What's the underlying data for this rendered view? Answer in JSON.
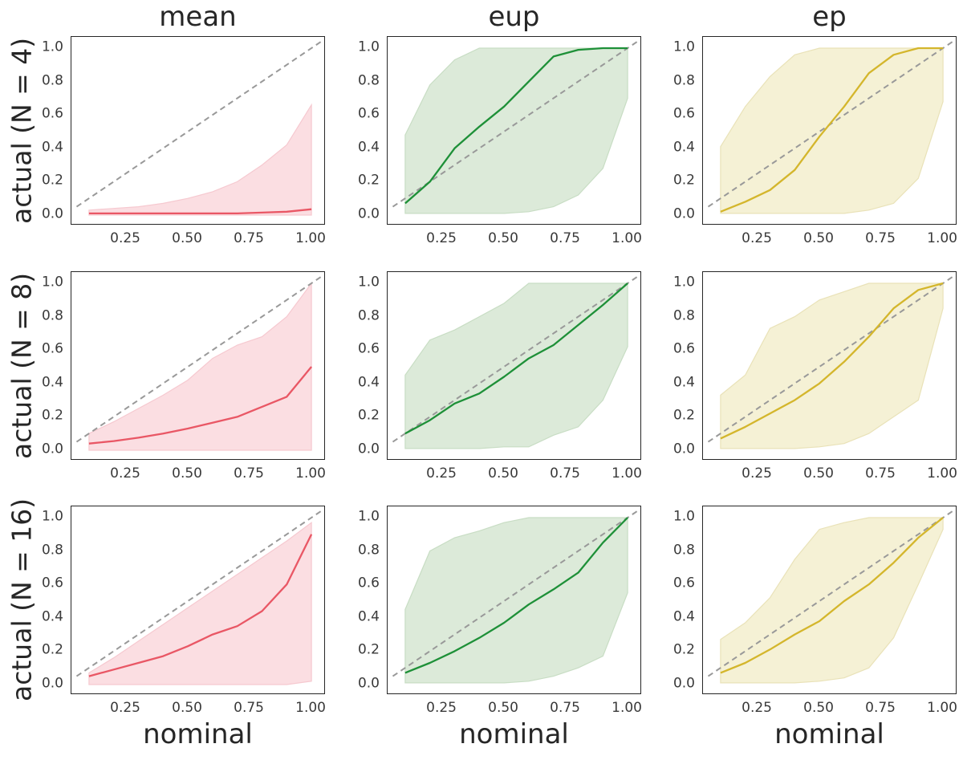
{
  "figure": {
    "xlabel": "nominal",
    "col_titles": [
      "mean",
      "eup",
      "ep"
    ],
    "row_labels": [
      "actual (N = 4)",
      "actual (N = 8)",
      "actual (N = 16)"
    ],
    "x_tick_labels": [
      "0.25",
      "0.50",
      "0.75",
      "1.00"
    ],
    "x_tick_values": [
      0.25,
      0.5,
      0.75,
      1.0
    ],
    "y_tick_labels": [
      "1.0",
      "0.8",
      "0.6",
      "0.4",
      "0.2",
      "0.0"
    ],
    "y_tick_values": [
      1.0,
      0.8,
      0.6,
      0.4,
      0.2,
      0.0
    ],
    "colors": {
      "mean_line": "#e95765",
      "mean_band": "#fbdee2",
      "mean_band_edge": "#f6c9d0",
      "eup_line": "#1e9038",
      "eup_band": "#dcead9",
      "eup_band_edge": "#c8ddc4",
      "ep_line": "#d4b62c",
      "ep_band": "#f5f1d5",
      "ep_band_edge": "#e9e2b8",
      "diagonal": "#999999",
      "spine": "#262626",
      "tick_text": "#3a3a3a",
      "label_text": "#262626",
      "background": "#ffffff"
    }
  },
  "chart_data": [
    {
      "type": "line",
      "col": 0,
      "row": 0,
      "title": "mean",
      "row_label": "actual (N = 4)",
      "x": [
        0.1,
        0.2,
        0.3,
        0.4,
        0.5,
        0.6,
        0.7,
        0.8,
        0.9,
        1.0
      ],
      "series": [
        {
          "name": "calibration-median",
          "values": [
            0.01,
            0.01,
            0.01,
            0.01,
            0.01,
            0.01,
            0.01,
            0.015,
            0.02,
            0.035
          ]
        },
        {
          "name": "band-upper",
          "values": [
            0.03,
            0.04,
            0.05,
            0.07,
            0.1,
            0.14,
            0.2,
            0.3,
            0.42,
            0.66
          ]
        },
        {
          "name": "band-lower",
          "values": [
            0.0,
            0.0,
            0.0,
            0.0,
            0.0,
            0.0,
            0.0,
            0.0,
            0.0,
            0.0
          ]
        }
      ],
      "diagonal": {
        "from": [
          0.05,
          0.05
        ],
        "to": [
          1.05,
          1.05
        ],
        "style": "dashed",
        "meaning": "y = x reference"
      },
      "xlim": [
        0.029,
        1.055
      ],
      "ylim": [
        -0.0625,
        1.067
      ],
      "line_color": "#e95765",
      "band_color": "#fbdee2",
      "band_edge": "#f6c9d0"
    },
    {
      "type": "line",
      "col": 1,
      "row": 0,
      "title": "eup",
      "row_label": "actual (N = 4)",
      "x": [
        0.1,
        0.2,
        0.3,
        0.4,
        0.5,
        0.6,
        0.7,
        0.8,
        0.9,
        1.0
      ],
      "series": [
        {
          "name": "calibration-median",
          "values": [
            0.07,
            0.2,
            0.4,
            0.53,
            0.65,
            0.8,
            0.95,
            0.99,
            1.0,
            1.0
          ]
        },
        {
          "name": "band-upper",
          "values": [
            0.48,
            0.78,
            0.93,
            1.0,
            1.0,
            1.0,
            1.0,
            1.0,
            1.0,
            1.0
          ]
        },
        {
          "name": "band-lower",
          "values": [
            0.01,
            0.01,
            0.01,
            0.01,
            0.01,
            0.02,
            0.05,
            0.12,
            0.28,
            0.7
          ]
        }
      ],
      "diagonal": {
        "from": [
          0.05,
          0.05
        ],
        "to": [
          1.05,
          1.05
        ],
        "style": "dashed",
        "meaning": "y = x reference"
      },
      "xlim": [
        0.029,
        1.055
      ],
      "ylim": [
        -0.0625,
        1.067
      ],
      "line_color": "#1e9038",
      "band_color": "#dcead9",
      "band_edge": "#c8ddc4"
    },
    {
      "type": "line",
      "col": 2,
      "row": 0,
      "title": "ep",
      "row_label": "actual (N = 4)",
      "x": [
        0.1,
        0.2,
        0.3,
        0.4,
        0.5,
        0.6,
        0.7,
        0.8,
        0.9,
        1.0
      ],
      "series": [
        {
          "name": "calibration-median",
          "values": [
            0.02,
            0.08,
            0.15,
            0.27,
            0.47,
            0.65,
            0.85,
            0.96,
            1.0,
            1.0
          ]
        },
        {
          "name": "band-upper",
          "values": [
            0.41,
            0.65,
            0.83,
            0.96,
            1.0,
            1.0,
            1.0,
            1.0,
            1.0,
            1.0
          ]
        },
        {
          "name": "band-lower",
          "values": [
            0.01,
            0.01,
            0.01,
            0.01,
            0.01,
            0.01,
            0.03,
            0.07,
            0.22,
            0.68
          ]
        }
      ],
      "diagonal": {
        "from": [
          0.05,
          0.05
        ],
        "to": [
          1.05,
          1.05
        ],
        "style": "dashed",
        "meaning": "y = x reference"
      },
      "xlim": [
        0.029,
        1.055
      ],
      "ylim": [
        -0.0625,
        1.067
      ],
      "line_color": "#d4b62c",
      "band_color": "#f5f1d5",
      "band_edge": "#e9e2b8"
    },
    {
      "type": "line",
      "col": 0,
      "row": 1,
      "title": "mean",
      "row_label": "actual (N = 8)",
      "x": [
        0.1,
        0.2,
        0.3,
        0.4,
        0.5,
        0.6,
        0.7,
        0.8,
        0.9,
        1.0
      ],
      "series": [
        {
          "name": "calibration-median",
          "values": [
            0.04,
            0.055,
            0.075,
            0.1,
            0.13,
            0.165,
            0.2,
            0.26,
            0.32,
            0.5
          ]
        },
        {
          "name": "band-upper",
          "values": [
            0.1,
            0.17,
            0.25,
            0.33,
            0.42,
            0.55,
            0.63,
            0.68,
            0.8,
            1.0
          ]
        },
        {
          "name": "band-lower",
          "values": [
            0.0,
            0.0,
            0.0,
            0.0,
            0.0,
            0.0,
            0.0,
            0.0,
            0.0,
            0.0
          ]
        }
      ],
      "diagonal": {
        "from": [
          0.05,
          0.05
        ],
        "to": [
          1.05,
          1.05
        ],
        "style": "dashed",
        "meaning": "y = x reference"
      },
      "xlim": [
        0.029,
        1.055
      ],
      "ylim": [
        -0.0625,
        1.067
      ],
      "line_color": "#e95765",
      "band_color": "#fbdee2",
      "band_edge": "#f6c9d0"
    },
    {
      "type": "line",
      "col": 1,
      "row": 1,
      "title": "eup",
      "row_label": "actual (N = 8)",
      "x": [
        0.1,
        0.2,
        0.3,
        0.4,
        0.5,
        0.6,
        0.7,
        0.8,
        0.9,
        1.0
      ],
      "series": [
        {
          "name": "calibration-median",
          "values": [
            0.1,
            0.18,
            0.28,
            0.34,
            0.44,
            0.55,
            0.63,
            0.75,
            0.87,
            1.0
          ]
        },
        {
          "name": "band-upper",
          "values": [
            0.45,
            0.66,
            0.72,
            0.8,
            0.88,
            1.0,
            1.0,
            1.0,
            1.0,
            1.0
          ]
        },
        {
          "name": "band-lower",
          "values": [
            0.01,
            0.01,
            0.01,
            0.01,
            0.02,
            0.02,
            0.09,
            0.14,
            0.3,
            0.62
          ]
        }
      ],
      "diagonal": {
        "from": [
          0.05,
          0.05
        ],
        "to": [
          1.05,
          1.05
        ],
        "style": "dashed",
        "meaning": "y = x reference"
      },
      "xlim": [
        0.029,
        1.055
      ],
      "ylim": [
        -0.0625,
        1.067
      ],
      "line_color": "#1e9038",
      "band_color": "#dcead9",
      "band_edge": "#c8ddc4"
    },
    {
      "type": "line",
      "col": 2,
      "row": 1,
      "title": "ep",
      "row_label": "actual (N = 8)",
      "x": [
        0.1,
        0.2,
        0.3,
        0.4,
        0.5,
        0.6,
        0.7,
        0.8,
        0.9,
        1.0
      ],
      "series": [
        {
          "name": "calibration-median",
          "values": [
            0.07,
            0.14,
            0.22,
            0.3,
            0.4,
            0.53,
            0.68,
            0.85,
            0.96,
            1.0
          ]
        },
        {
          "name": "band-upper",
          "values": [
            0.33,
            0.45,
            0.73,
            0.8,
            0.9,
            0.95,
            1.0,
            1.0,
            1.0,
            1.0
          ]
        },
        {
          "name": "band-lower",
          "values": [
            0.01,
            0.01,
            0.01,
            0.01,
            0.02,
            0.04,
            0.1,
            0.2,
            0.3,
            0.85
          ]
        }
      ],
      "diagonal": {
        "from": [
          0.05,
          0.05
        ],
        "to": [
          1.05,
          1.05
        ],
        "style": "dashed",
        "meaning": "y = x reference"
      },
      "xlim": [
        0.029,
        1.055
      ],
      "ylim": [
        -0.0625,
        1.067
      ],
      "line_color": "#d4b62c",
      "band_color": "#f5f1d5",
      "band_edge": "#e9e2b8"
    },
    {
      "type": "line",
      "col": 0,
      "row": 2,
      "title": "mean",
      "row_label": "actual (N = 16)",
      "x": [
        0.1,
        0.2,
        0.3,
        0.4,
        0.5,
        0.6,
        0.7,
        0.8,
        0.9,
        1.0
      ],
      "series": [
        {
          "name": "calibration-median",
          "values": [
            0.05,
            0.09,
            0.13,
            0.17,
            0.23,
            0.3,
            0.35,
            0.44,
            0.6,
            0.9
          ]
        },
        {
          "name": "band-upper",
          "values": [
            0.07,
            0.16,
            0.26,
            0.36,
            0.46,
            0.56,
            0.66,
            0.76,
            0.86,
            0.97
          ]
        },
        {
          "name": "band-lower",
          "values": [
            0.0,
            0.0,
            0.0,
            0.0,
            0.0,
            0.0,
            0.0,
            0.0,
            0.0,
            0.02
          ]
        }
      ],
      "diagonal": {
        "from": [
          0.05,
          0.05
        ],
        "to": [
          1.05,
          1.05
        ],
        "style": "dashed",
        "meaning": "y = x reference"
      },
      "xlim": [
        0.029,
        1.055
      ],
      "ylim": [
        -0.0625,
        1.067
      ],
      "line_color": "#e95765",
      "band_color": "#fbdee2",
      "band_edge": "#f6c9d0"
    },
    {
      "type": "line",
      "col": 1,
      "row": 2,
      "title": "eup",
      "row_label": "actual (N = 16)",
      "x": [
        0.1,
        0.2,
        0.3,
        0.4,
        0.5,
        0.6,
        0.7,
        0.8,
        0.9,
        1.0
      ],
      "series": [
        {
          "name": "calibration-median",
          "values": [
            0.07,
            0.13,
            0.2,
            0.28,
            0.37,
            0.48,
            0.57,
            0.67,
            0.85,
            1.0
          ]
        },
        {
          "name": "band-upper",
          "values": [
            0.45,
            0.8,
            0.88,
            0.92,
            0.97,
            1.0,
            1.0,
            1.0,
            1.0,
            1.0
          ]
        },
        {
          "name": "band-lower",
          "values": [
            0.01,
            0.01,
            0.01,
            0.01,
            0.01,
            0.02,
            0.05,
            0.1,
            0.17,
            0.55
          ]
        }
      ],
      "diagonal": {
        "from": [
          0.05,
          0.05
        ],
        "to": [
          1.05,
          1.05
        ],
        "style": "dashed",
        "meaning": "y = x reference"
      },
      "xlim": [
        0.029,
        1.055
      ],
      "ylim": [
        -0.0625,
        1.067
      ],
      "line_color": "#1e9038",
      "band_color": "#dcead9",
      "band_edge": "#c8ddc4"
    },
    {
      "type": "line",
      "col": 2,
      "row": 2,
      "title": "ep",
      "row_label": "actual (N = 16)",
      "x": [
        0.1,
        0.2,
        0.3,
        0.4,
        0.5,
        0.6,
        0.7,
        0.8,
        0.9,
        1.0
      ],
      "series": [
        {
          "name": "calibration-median",
          "values": [
            0.07,
            0.13,
            0.21,
            0.3,
            0.38,
            0.5,
            0.6,
            0.73,
            0.88,
            1.0
          ]
        },
        {
          "name": "band-upper",
          "values": [
            0.27,
            0.37,
            0.52,
            0.75,
            0.93,
            0.97,
            1.0,
            1.0,
            1.0,
            1.0
          ]
        },
        {
          "name": "band-lower",
          "values": [
            0.01,
            0.01,
            0.01,
            0.01,
            0.02,
            0.04,
            0.1,
            0.28,
            0.6,
            0.93
          ]
        }
      ],
      "diagonal": {
        "from": [
          0.05,
          0.05
        ],
        "to": [
          1.05,
          1.05
        ],
        "style": "dashed",
        "meaning": "y = x reference"
      },
      "xlim": [
        0.029,
        1.055
      ],
      "ylim": [
        -0.0625,
        1.067
      ],
      "line_color": "#d4b62c",
      "band_color": "#f5f1d5",
      "band_edge": "#e9e2b8"
    }
  ]
}
